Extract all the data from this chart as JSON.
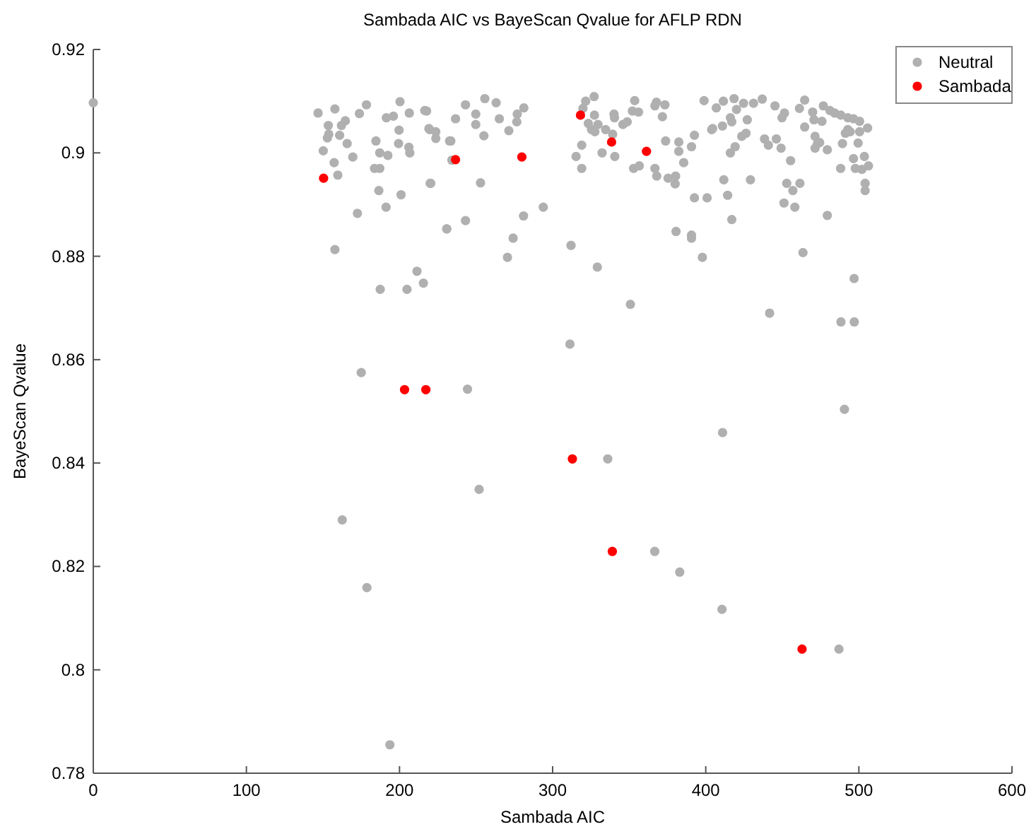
{
  "chart_data": {
    "type": "scatter",
    "title": "Sambada AIC vs BayeScan Qvalue for AFLP RDN",
    "xlabel": "Sambada AIC",
    "ylabel": "BayeScan Qvalue",
    "xlim": [
      0,
      600
    ],
    "xticks": [
      0,
      100,
      200,
      300,
      400,
      500,
      600
    ],
    "ylim": [
      0.78,
      0.92
    ],
    "yticks": [
      0.78,
      0.8,
      0.82,
      0.84,
      0.86,
      0.88,
      0.9,
      0.92
    ],
    "grid": false,
    "legend": "top right",
    "marker": "circle",
    "series": [
      {
        "name": "Neutral",
        "color": "#b0b0b0",
        "x": [
          0,
          146.8,
          157.8,
          153.5,
          164.6,
          162.1,
          153.8,
          152.9,
          160.9,
          165.8,
          150.2,
          157.3,
          159.7,
          169.5,
          173.8,
          178.4,
          184.6,
          187.1,
          192.4,
          183.7,
          187.1,
          186.5,
          201,
          191.2,
          172.5,
          157.8,
          211.4,
          187.4,
          204.9,
          215.6,
          191.4,
          196,
          200.3,
          206.4,
          199.7,
          199.4,
          206.1,
          206.7,
          217.7,
          219.2,
          232.7,
          234.2,
          220.4,
          230.9,
          216.5,
          243.1,
          255.7,
          263.1,
          281.2,
          276.9,
          276.6,
          271.4,
          265.2,
          249.8,
          249.8,
          236.6,
          219.7,
          223.7,
          223.7,
          233.5,
          255.1,
          220,
          252.9,
          243.1,
          230.8,
          293.9,
          281,
          274.2,
          270.5,
          312,
          329.2,
          350.8,
          321.6,
          327.1,
          319.8,
          327.3,
          323.3,
          329.6,
          325.4,
          327.6,
          334.6,
          339.2,
          340.1,
          340.4,
          345.9,
          348.7,
          352.1,
          356.1,
          353.6,
          366.8,
          367.8,
          373.3,
          371.7,
          319,
          315.3,
          319,
          332.3,
          340.6,
          352.9,
          356.6,
          366.8,
          368,
          373.8,
          382.4,
          382.4,
          390.7,
          392.6,
          385.6,
          375.4,
          380.3,
          380,
          392.6,
          400.9,
          380.6,
          390.7,
          390.7,
          397.8,
          398.9,
          406.9,
          411.5,
          418.5,
          424.7,
          431.2,
          420.1,
          416.1,
          417,
          427.1,
          410.9,
          404.5,
          403.9,
          423.5,
          426.3,
          419.2,
          416.1,
          411.8,
          414.3,
          417,
          429.2,
          436.9,
          445.2,
          451.4,
          449.8,
          464.6,
          461.2,
          469.8,
          470.7,
          475.9,
          476.8,
          481.1,
          484.2,
          488.2,
          492.8,
          496.5,
          500.5,
          492.8,
          491.2,
          494.3,
          500.5,
          505.7,
          489.3,
          499.5,
          496.5,
          503.6,
          497.7,
          502,
          506.3,
          488.1,
          504.1,
          504.1,
          464.6,
          471.4,
          473,
          471.4,
          479.4,
          474.4,
          438.4,
          446.1,
          449.2,
          440.9,
          455.4,
          452.9,
          456.9,
          461.5,
          451.1,
          458.2,
          479.4,
          463.5,
          441.7,
          496.9,
          162.6,
          175,
          178.7,
          193.7,
          244.4,
          252,
          311.3,
          336,
          366.7,
          383,
          410.6,
          411,
          487,
          488.3,
          490.6,
          497
        ],
        "values": [
          0.9097,
          0.9077,
          0.9085,
          0.9053,
          0.9062,
          0.9053,
          0.9036,
          0.9029,
          0.9034,
          0.9018,
          0.9004,
          0.8981,
          0.8957,
          0.8992,
          0.9076,
          0.9093,
          0.9023,
          0.9,
          0.8995,
          0.897,
          0.897,
          0.8927,
          0.8919,
          0.8895,
          0.8883,
          0.8813,
          0.8771,
          0.8736,
          0.8736,
          0.8748,
          0.9068,
          0.9071,
          0.9099,
          0.9077,
          0.9044,
          0.9018,
          0.9011,
          0.9,
          0.9081,
          0.9047,
          0.9023,
          0.8986,
          0.8941,
          0.8853,
          0.9082,
          0.9093,
          0.9105,
          0.9097,
          0.9087,
          0.9075,
          0.906,
          0.9043,
          0.9066,
          0.9075,
          0.9055,
          0.9066,
          0.9045,
          0.9041,
          0.9028,
          0.9023,
          0.9033,
          0.8941,
          0.8942,
          0.8869,
          0.8853,
          0.8895,
          0.8878,
          0.8835,
          0.8798,
          0.8821,
          0.8779,
          0.8707,
          0.91,
          0.9109,
          0.9086,
          0.9073,
          0.9057,
          0.9055,
          0.9045,
          0.9041,
          0.9045,
          0.9036,
          0.9075,
          0.9068,
          0.9055,
          0.906,
          0.9081,
          0.9079,
          0.9101,
          0.9091,
          0.9098,
          0.9093,
          0.907,
          0.9015,
          0.8993,
          0.897,
          0.9,
          0.8993,
          0.897,
          0.8975,
          0.897,
          0.8955,
          0.9023,
          0.9021,
          0.9003,
          0.9012,
          0.9034,
          0.8981,
          0.8951,
          0.8955,
          0.894,
          0.8913,
          0.8913,
          0.8848,
          0.8841,
          0.8835,
          0.8798,
          0.9101,
          0.9087,
          0.91,
          0.9105,
          0.9096,
          0.9096,
          0.9084,
          0.9068,
          0.906,
          0.9064,
          0.9052,
          0.9047,
          0.9045,
          0.9032,
          0.9038,
          0.9012,
          0.9,
          0.8948,
          0.8918,
          0.8871,
          0.8948,
          0.9104,
          0.9091,
          0.9077,
          0.9068,
          0.9102,
          0.9086,
          0.9079,
          0.9064,
          0.9061,
          0.9091,
          0.9082,
          0.9077,
          0.9073,
          0.9068,
          0.9066,
          0.9061,
          0.9045,
          0.9038,
          0.9041,
          0.9041,
          0.9048,
          0.9018,
          0.9019,
          0.8989,
          0.8993,
          0.897,
          0.8968,
          0.8975,
          0.897,
          0.8941,
          0.8927,
          0.905,
          0.9032,
          0.9018,
          0.9009,
          0.9006,
          0.902,
          0.9027,
          0.9027,
          0.9009,
          0.9015,
          0.8985,
          0.8941,
          0.8927,
          0.8941,
          0.8903,
          0.8895,
          0.8879,
          0.8807,
          0.869,
          0.8757,
          0.829,
          0.8575,
          0.8159,
          0.7855,
          0.8543,
          0.8349,
          0.863,
          0.8408,
          0.8229,
          0.8189,
          0.8117,
          0.8459,
          0.804,
          0.8673,
          0.8504,
          0.8673
        ]
      },
      {
        "name": "Sambada",
        "color": "#ff0000",
        "x": [
          150.4,
          203.3,
          217.2,
          236.6,
          279.9,
          312.9,
          318.2,
          338.5,
          339,
          361.3,
          462.9
        ],
        "values": [
          0.8951,
          0.8542,
          0.8542,
          0.8987,
          0.8992,
          0.8408,
          0.9073,
          0.9021,
          0.8229,
          0.9003,
          0.804
        ]
      }
    ]
  }
}
